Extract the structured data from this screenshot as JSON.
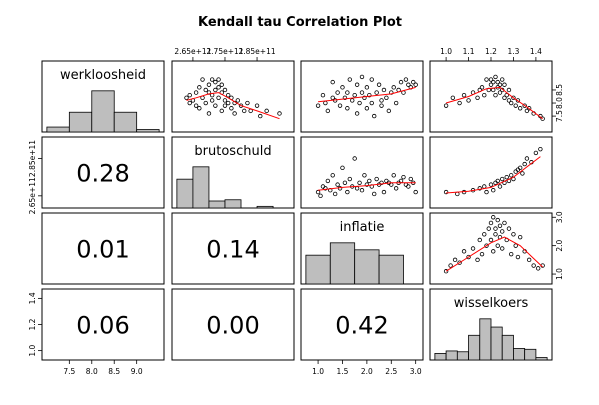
{
  "chart_data": {
    "type": "scatter",
    "title": "Kendall tau Correlation Plot",
    "variables": [
      "werkloosheid",
      "brutoschuld",
      "inflatie",
      "wisselkoers"
    ],
    "axes": {
      "werkloosheid": {
        "bottom_ticks": [
          "7.5",
          "8.0",
          "8.5",
          "9.0"
        ],
        "right_ticks": [
          "7.5",
          "8.0",
          "8.5"
        ]
      },
      "brutoschuld": {
        "top_ticks": [
          "2.65e+11",
          "2.75e+11",
          "2.85e+11"
        ],
        "left_ticks": [
          "2.65e+11",
          "2.85e+11"
        ]
      },
      "inflatie": {
        "bottom_ticks": [
          "1.0",
          "1.5",
          "2.0",
          "2.5",
          "3.0"
        ],
        "right_ticks": [
          "1.0",
          "2.0",
          "3.0"
        ]
      },
      "wisselkoers": {
        "top_ticks": [
          "1.0",
          "1.1",
          "1.2",
          "1.3",
          "1.4"
        ],
        "left_ticks": [
          "1.0",
          "1.2",
          "1.4"
        ]
      }
    },
    "correlations": [
      {
        "row": "brutoschuld",
        "col": "werkloosheid",
        "value": "0.28"
      },
      {
        "row": "inflatie",
        "col": "werkloosheid",
        "value": "0.01"
      },
      {
        "row": "inflatie",
        "col": "brutoschuld",
        "value": "0.14"
      },
      {
        "row": "wisselkoers",
        "col": "werkloosheid",
        "value": "0.06"
      },
      {
        "row": "wisselkoers",
        "col": "brutoschuld",
        "value": "0.00"
      },
      {
        "row": "wisselkoers",
        "col": "inflatie",
        "value": "0.42"
      }
    ],
    "histograms": {
      "werkloosheid": {
        "bins": [
          7.0,
          7.5,
          8.0,
          8.5,
          9.0,
          9.5
        ],
        "heights": [
          0.12,
          0.48,
          1.0,
          0.48,
          0.06
        ]
      },
      "brutoschuld": {
        "bins": [
          2.6,
          2.65,
          2.7,
          2.75,
          2.8,
          2.85,
          2.9,
          2.95
        ],
        "heights": [
          0.7,
          1.0,
          0.17,
          0.2,
          0.0,
          0.04,
          0.0
        ]
      },
      "inflatie": {
        "bins": [
          0.75,
          1.25,
          1.75,
          2.25,
          2.75,
          3.0
        ],
        "heights": [
          0.7,
          1.0,
          0.83,
          0.7,
          0.0
        ]
      },
      "wisselkoers": {
        "bins": [
          0.95,
          1.0,
          1.05,
          1.1,
          1.15,
          1.2,
          1.25,
          1.3,
          1.35,
          1.4,
          1.45
        ],
        "heights": [
          0.16,
          0.22,
          0.2,
          0.6,
          1.0,
          0.8,
          0.6,
          0.28,
          0.26,
          0.06
        ]
      }
    },
    "series": [
      {
        "x_var": "brutoschuld",
        "y_var": "werkloosheid",
        "points": [
          [
            2.63,
            8.2
          ],
          [
            2.64,
            8.0
          ],
          [
            2.64,
            8.3
          ],
          [
            2.65,
            8.1
          ],
          [
            2.66,
            7.9
          ],
          [
            2.66,
            8.4
          ],
          [
            2.67,
            8.6
          ],
          [
            2.67,
            7.8
          ],
          [
            2.68,
            8.2
          ],
          [
            2.68,
            8.9
          ],
          [
            2.69,
            8.5
          ],
          [
            2.69,
            8.0
          ],
          [
            2.7,
            8.7
          ],
          [
            2.7,
            8.4
          ],
          [
            2.7,
            7.6
          ],
          [
            2.71,
            8.9
          ],
          [
            2.71,
            8.3
          ],
          [
            2.71,
            8.1
          ],
          [
            2.72,
            8.8
          ],
          [
            2.72,
            8.5
          ],
          [
            2.72,
            7.9
          ],
          [
            2.73,
            8.6
          ],
          [
            2.73,
            8.9
          ],
          [
            2.73,
            8.2
          ],
          [
            2.74,
            8.7
          ],
          [
            2.74,
            8.4
          ],
          [
            2.74,
            7.7
          ],
          [
            2.75,
            8.5
          ],
          [
            2.75,
            8.1
          ],
          [
            2.75,
            7.9
          ],
          [
            2.76,
            8.3
          ],
          [
            2.76,
            8.0
          ],
          [
            2.77,
            8.2
          ],
          [
            2.77,
            7.8
          ],
          [
            2.78,
            8.0
          ],
          [
            2.78,
            7.6
          ],
          [
            2.79,
            8.1
          ],
          [
            2.8,
            7.9
          ],
          [
            2.81,
            7.7
          ],
          [
            2.82,
            8.0
          ],
          [
            2.83,
            7.7
          ],
          [
            2.85,
            7.9
          ],
          [
            2.86,
            7.5
          ],
          [
            2.88,
            7.7
          ],
          [
            2.92,
            7.6
          ]
        ],
        "smooth": [
          [
            2.63,
            8.1
          ],
          [
            2.66,
            8.2
          ],
          [
            2.7,
            8.35
          ],
          [
            2.73,
            8.4
          ],
          [
            2.76,
            8.2
          ],
          [
            2.8,
            7.9
          ],
          [
            2.85,
            7.7
          ],
          [
            2.92,
            7.4
          ]
        ]
      },
      {
        "x_var": "inflatie",
        "y_var": "werkloosheid",
        "points": [
          [
            1.0,
            7.9
          ],
          [
            1.1,
            8.3
          ],
          [
            1.15,
            8.0
          ],
          [
            1.2,
            7.7
          ],
          [
            1.3,
            8.2
          ],
          [
            1.3,
            8.8
          ],
          [
            1.35,
            8.1
          ],
          [
            1.4,
            8.4
          ],
          [
            1.45,
            7.9
          ],
          [
            1.5,
            8.6
          ],
          [
            1.55,
            8.2
          ],
          [
            1.6,
            7.8
          ],
          [
            1.6,
            8.4
          ],
          [
            1.65,
            8.9
          ],
          [
            1.7,
            8.1
          ],
          [
            1.75,
            8.3
          ],
          [
            1.8,
            7.6
          ],
          [
            1.8,
            8.7
          ],
          [
            1.85,
            8.0
          ],
          [
            1.9,
            9.0
          ],
          [
            1.9,
            8.4
          ],
          [
            1.95,
            8.2
          ],
          [
            2.0,
            7.8
          ],
          [
            2.0,
            8.6
          ],
          [
            2.05,
            8.3
          ],
          [
            2.1,
            8.9
          ],
          [
            2.1,
            8.0
          ],
          [
            2.15,
            7.5
          ],
          [
            2.2,
            8.4
          ],
          [
            2.25,
            8.7
          ],
          [
            2.3,
            8.1
          ],
          [
            2.3,
            7.9
          ],
          [
            2.35,
            8.5
          ],
          [
            2.4,
            8.2
          ],
          [
            2.45,
            7.7
          ],
          [
            2.5,
            8.4
          ],
          [
            2.55,
            8.6
          ],
          [
            2.6,
            8.0
          ],
          [
            2.65,
            8.5
          ],
          [
            2.7,
            8.8
          ],
          [
            2.75,
            8.4
          ],
          [
            2.8,
            8.9
          ],
          [
            2.85,
            8.7
          ],
          [
            2.9,
            8.6
          ],
          [
            2.95,
            8.8
          ],
          [
            3.0,
            8.7
          ]
        ],
        "smooth": [
          [
            1.0,
            8.05
          ],
          [
            1.5,
            8.15
          ],
          [
            2.0,
            8.25
          ],
          [
            2.5,
            8.35
          ],
          [
            3.0,
            8.6
          ]
        ]
      },
      {
        "x_var": "wisselkoers",
        "y_var": "werkloosheid",
        "points": [
          [
            1.0,
            7.9
          ],
          [
            1.03,
            8.2
          ],
          [
            1.06,
            8.0
          ],
          [
            1.08,
            8.3
          ],
          [
            1.1,
            8.1
          ],
          [
            1.12,
            8.4
          ],
          [
            1.14,
            8.2
          ],
          [
            1.15,
            8.5
          ],
          [
            1.16,
            8.6
          ],
          [
            1.17,
            8.3
          ],
          [
            1.18,
            8.9
          ],
          [
            1.19,
            8.5
          ],
          [
            1.2,
            8.9
          ],
          [
            1.2,
            8.7
          ],
          [
            1.21,
            8.8
          ],
          [
            1.21,
            8.5
          ],
          [
            1.22,
            9.0
          ],
          [
            1.22,
            8.3
          ],
          [
            1.23,
            8.8
          ],
          [
            1.23,
            8.6
          ],
          [
            1.24,
            8.7
          ],
          [
            1.24,
            8.4
          ],
          [
            1.25,
            8.9
          ],
          [
            1.25,
            8.5
          ],
          [
            1.26,
            8.7
          ],
          [
            1.26,
            8.2
          ],
          [
            1.27,
            8.3
          ],
          [
            1.28,
            8.5
          ],
          [
            1.28,
            8.1
          ],
          [
            1.29,
            8.0
          ],
          [
            1.3,
            8.2
          ],
          [
            1.31,
            7.9
          ],
          [
            1.32,
            8.1
          ],
          [
            1.33,
            7.8
          ],
          [
            1.35,
            7.9
          ],
          [
            1.36,
            7.7
          ],
          [
            1.37,
            7.8
          ],
          [
            1.39,
            7.6
          ],
          [
            1.42,
            7.5
          ],
          [
            1.43,
            7.4
          ]
        ],
        "smooth": [
          [
            1.0,
            8.0
          ],
          [
            1.1,
            8.25
          ],
          [
            1.18,
            8.55
          ],
          [
            1.24,
            8.6
          ],
          [
            1.3,
            8.2
          ],
          [
            1.36,
            7.85
          ],
          [
            1.43,
            7.4
          ]
        ]
      },
      {
        "x_var": "inflatie",
        "y_var": "brutoschuld",
        "points": [
          [
            1.0,
            2.67
          ],
          [
            1.05,
            2.65
          ],
          [
            1.1,
            2.7
          ],
          [
            1.15,
            2.69
          ],
          [
            1.2,
            2.73
          ],
          [
            1.25,
            2.68
          ],
          [
            1.3,
            2.76
          ],
          [
            1.35,
            2.66
          ],
          [
            1.4,
            2.71
          ],
          [
            1.45,
            2.69
          ],
          [
            1.5,
            2.8
          ],
          [
            1.55,
            2.72
          ],
          [
            1.6,
            2.67
          ],
          [
            1.65,
            2.74
          ],
          [
            1.7,
            2.7
          ],
          [
            1.75,
            2.85
          ],
          [
            1.8,
            2.69
          ],
          [
            1.85,
            2.72
          ],
          [
            1.9,
            2.68
          ],
          [
            1.95,
            2.76
          ],
          [
            2.0,
            2.71
          ],
          [
            2.05,
            2.73
          ],
          [
            2.1,
            2.7
          ],
          [
            2.15,
            2.66
          ],
          [
            2.2,
            2.74
          ],
          [
            2.25,
            2.71
          ],
          [
            2.3,
            2.72
          ],
          [
            2.35,
            2.67
          ],
          [
            2.4,
            2.73
          ],
          [
            2.45,
            2.72
          ],
          [
            2.5,
            2.71
          ],
          [
            2.55,
            2.76
          ],
          [
            2.6,
            2.69
          ],
          [
            2.65,
            2.72
          ],
          [
            2.7,
            2.73
          ],
          [
            2.75,
            2.75
          ],
          [
            2.8,
            2.71
          ],
          [
            2.85,
            2.7
          ],
          [
            2.9,
            2.74
          ],
          [
            2.95,
            2.72
          ],
          [
            3.0,
            2.67
          ]
        ],
        "smooth": [
          [
            1.0,
            2.68
          ],
          [
            1.5,
            2.695
          ],
          [
            2.0,
            2.705
          ],
          [
            2.5,
            2.72
          ],
          [
            3.0,
            2.72
          ]
        ]
      },
      {
        "x_var": "wisselkoers",
        "y_var": "brutoschuld",
        "points": [
          [
            1.0,
            2.67
          ],
          [
            1.05,
            2.66
          ],
          [
            1.08,
            2.67
          ],
          [
            1.12,
            2.68
          ],
          [
            1.15,
            2.69
          ],
          [
            1.17,
            2.7
          ],
          [
            1.18,
            2.67
          ],
          [
            1.2,
            2.71
          ],
          [
            1.21,
            2.68
          ],
          [
            1.22,
            2.72
          ],
          [
            1.23,
            2.73
          ],
          [
            1.24,
            2.7
          ],
          [
            1.25,
            2.74
          ],
          [
            1.26,
            2.72
          ],
          [
            1.27,
            2.75
          ],
          [
            1.28,
            2.73
          ],
          [
            1.29,
            2.76
          ],
          [
            1.3,
            2.74
          ],
          [
            1.31,
            2.78
          ],
          [
            1.32,
            2.79
          ],
          [
            1.33,
            2.8
          ],
          [
            1.34,
            2.77
          ],
          [
            1.35,
            2.82
          ],
          [
            1.36,
            2.85
          ],
          [
            1.38,
            2.83
          ],
          [
            1.4,
            2.88
          ],
          [
            1.42,
            2.9
          ]
        ],
        "smooth": [
          [
            1.0,
            2.665
          ],
          [
            1.1,
            2.675
          ],
          [
            1.2,
            2.695
          ],
          [
            1.3,
            2.75
          ],
          [
            1.42,
            2.86
          ]
        ]
      },
      {
        "x_var": "wisselkoers",
        "y_var": "inflatie",
        "points": [
          [
            1.0,
            1.1
          ],
          [
            1.02,
            1.3
          ],
          [
            1.04,
            1.5
          ],
          [
            1.06,
            1.4
          ],
          [
            1.08,
            1.8
          ],
          [
            1.1,
            1.6
          ],
          [
            1.12,
            1.9
          ],
          [
            1.14,
            1.5
          ],
          [
            1.15,
            2.2
          ],
          [
            1.16,
            1.7
          ],
          [
            1.17,
            2.4
          ],
          [
            1.18,
            2.0
          ],
          [
            1.19,
            2.6
          ],
          [
            1.2,
            2.8
          ],
          [
            1.2,
            2.2
          ],
          [
            1.21,
            3.0
          ],
          [
            1.21,
            1.8
          ],
          [
            1.22,
            2.6
          ],
          [
            1.22,
            2.4
          ],
          [
            1.23,
            2.9
          ],
          [
            1.23,
            2.0
          ],
          [
            1.24,
            2.7
          ],
          [
            1.24,
            2.3
          ],
          [
            1.25,
            2.5
          ],
          [
            1.25,
            1.9
          ],
          [
            1.26,
            2.8
          ],
          [
            1.27,
            2.2
          ],
          [
            1.28,
            2.6
          ],
          [
            1.29,
            1.7
          ],
          [
            1.3,
            2.4
          ],
          [
            1.31,
            2.0
          ],
          [
            1.32,
            1.6
          ],
          [
            1.33,
            2.3
          ],
          [
            1.35,
            1.8
          ],
          [
            1.37,
            1.5
          ],
          [
            1.39,
            1.3
          ],
          [
            1.41,
            1.2
          ],
          [
            1.43,
            1.3
          ]
        ],
        "smooth": [
          [
            1.0,
            1.1
          ],
          [
            1.1,
            1.6
          ],
          [
            1.2,
            2.1
          ],
          [
            1.26,
            2.3
          ],
          [
            1.33,
            2.0
          ],
          [
            1.43,
            1.25
          ]
        ]
      }
    ]
  }
}
